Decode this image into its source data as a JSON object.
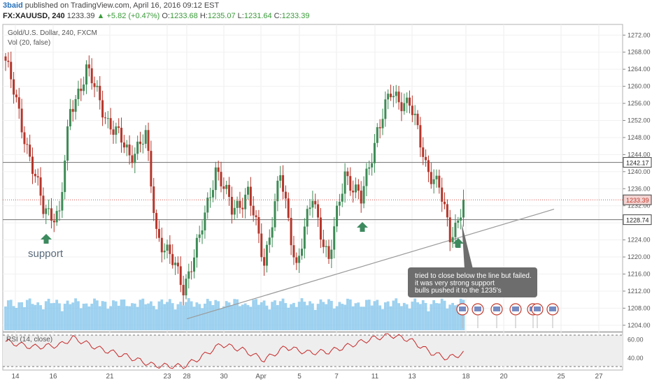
{
  "header": {
    "author": "3baid",
    "published": "published on TradingView.com, April 16, 2016 09:12 EST",
    "symbol": "FX:XAUUSD, 240",
    "last": "1233.39",
    "change": "▲ +5.82 (+0.47%)",
    "open_label": "O:",
    "open": "1233.68",
    "high_label": "H:",
    "high": "1235.07",
    "low_label": "L:",
    "low": "1231.64",
    "close_label": "C:",
    "close": "1233.39"
  },
  "panel": {
    "title": "Gold/U.S. Dollar, 240, FXCM",
    "volume_label": "Vol (20, false)",
    "rsi_label": "RSI (14, close)"
  },
  "annotations": {
    "support": "support",
    "callout": [
      "tried to close below the line but failed.",
      "it was very strong support",
      "bulls pushed it to the 1235's"
    ]
  },
  "price_tags": {
    "level_high": "1242.17",
    "current": "1233.39",
    "level_low": "1228.74"
  },
  "colors": {
    "up": "#3e8b56",
    "down": "#b5362b",
    "volume": "#7cc2ea",
    "rsi": "#c62828",
    "arrow": "#3d8a5f",
    "hline": "#707070",
    "current": "#d9534f"
  },
  "chart_data": [
    {
      "type": "candlestick",
      "xlabels": [
        "14",
        "16",
        "21",
        "23",
        "28",
        "30",
        "Apr",
        "5",
        "7",
        "11",
        "13",
        "18",
        "20",
        "25",
        "27"
      ],
      "yticks": [
        1204,
        1208,
        1212,
        1216,
        1220,
        1224,
        1228,
        1232,
        1236,
        1240,
        1244,
        1248,
        1252,
        1256,
        1260,
        1264,
        1268,
        1272
      ],
      "ylim": [
        1202.5,
        1274.5
      ],
      "horizontal_levels": [
        1242.17,
        1228.74
      ],
      "current_price": 1233.39,
      "trendline": {
        "from": {
          "date": "2016-03-28",
          "price": 1205.5
        },
        "to": {
          "date": "2016-04-25",
          "price": 1231.2
        }
      },
      "anchors": [
        {
          "index": 0,
          "price": 1266
        },
        {
          "index": 8,
          "price": 1246
        },
        {
          "index": 14,
          "price": 1231
        },
        {
          "index": 20,
          "price": 1230
        },
        {
          "index": 24,
          "price": 1254
        },
        {
          "index": 30,
          "price": 1264
        },
        {
          "index": 38,
          "price": 1252
        },
        {
          "index": 46,
          "price": 1244
        },
        {
          "index": 52,
          "price": 1248
        },
        {
          "index": 56,
          "price": 1226
        },
        {
          "index": 61,
          "price": 1220
        },
        {
          "index": 66,
          "price": 1213
        },
        {
          "index": 72,
          "price": 1224
        },
        {
          "index": 78,
          "price": 1241
        },
        {
          "index": 84,
          "price": 1231
        },
        {
          "index": 90,
          "price": 1235
        },
        {
          "index": 96,
          "price": 1219
        },
        {
          "index": 102,
          "price": 1239
        },
        {
          "index": 108,
          "price": 1218
        },
        {
          "index": 114,
          "price": 1234
        },
        {
          "index": 120,
          "price": 1219
        },
        {
          "index": 126,
          "price": 1240
        },
        {
          "index": 132,
          "price": 1233
        },
        {
          "index": 138,
          "price": 1250
        },
        {
          "index": 143,
          "price": 1258
        },
        {
          "index": 150,
          "price": 1256
        },
        {
          "index": 156,
          "price": 1242
        },
        {
          "index": 161,
          "price": 1236
        },
        {
          "index": 165,
          "price": 1225
        },
        {
          "index": 168,
          "price": 1229
        },
        {
          "index": 170,
          "price": 1233.39
        }
      ],
      "candle_count": 171
    },
    {
      "type": "line",
      "name": "RSI (14, close)",
      "yticks": [
        40,
        60
      ],
      "ylim": [
        27,
        68
      ],
      "bands": [
        70,
        30
      ],
      "anchors": [
        {
          "index": 0,
          "value": 58
        },
        {
          "index": 10,
          "value": 52
        },
        {
          "index": 20,
          "value": 54
        },
        {
          "index": 25,
          "value": 62
        },
        {
          "index": 35,
          "value": 50
        },
        {
          "index": 45,
          "value": 42
        },
        {
          "index": 55,
          "value": 32
        },
        {
          "index": 66,
          "value": 31
        },
        {
          "index": 72,
          "value": 40
        },
        {
          "index": 80,
          "value": 55
        },
        {
          "index": 88,
          "value": 49
        },
        {
          "index": 96,
          "value": 38
        },
        {
          "index": 104,
          "value": 52
        },
        {
          "index": 112,
          "value": 46
        },
        {
          "index": 120,
          "value": 47
        },
        {
          "index": 128,
          "value": 54
        },
        {
          "index": 136,
          "value": 61
        },
        {
          "index": 143,
          "value": 65
        },
        {
          "index": 150,
          "value": 60
        },
        {
          "index": 158,
          "value": 46
        },
        {
          "index": 164,
          "value": 40
        },
        {
          "index": 170,
          "value": 45
        }
      ]
    }
  ]
}
